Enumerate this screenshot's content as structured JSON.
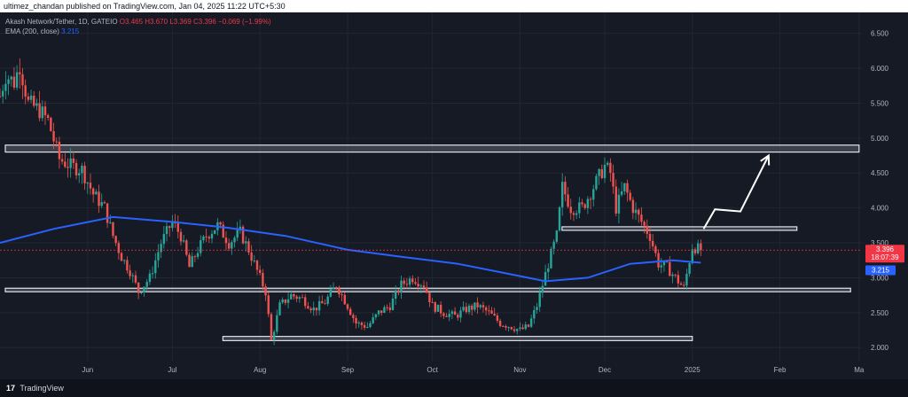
{
  "header": {
    "published_text": "ultimez_chandan published on TradingView.com, Jan 04, 2025 11:22 UTC+5:30"
  },
  "legend": {
    "symbol": "Akash Network/Tether, 1D, GATEIO",
    "open": "O3.465",
    "high": "H3.670",
    "low": "L3.369",
    "close": "C3.396",
    "change": "−0.069 (−1.99%)",
    "ema_label": "EMA (200, close)",
    "ema_value": "3.215"
  },
  "footer": {
    "logo_text": "TradingView",
    "logo_mark": "17"
  },
  "colors": {
    "background": "#161a25",
    "up": "#26a69a",
    "down": "#ef5350",
    "ema": "#2962ff",
    "price_badge": "#f23645",
    "ema_badge": "#2962ff"
  },
  "chart_data": {
    "type": "candlestick",
    "symbol": "Akash Network/Tether",
    "interval": "1D",
    "exchange": "GATEIO",
    "y_axis": {
      "ticks": [
        "6.500",
        "6.000",
        "5.500",
        "5.000",
        "4.500",
        "4.000",
        "3.500",
        "3.000",
        "2.500",
        "2.000"
      ],
      "range": [
        1.8,
        6.8
      ]
    },
    "x_axis": {
      "ticks": [
        "Jun",
        "Jul",
        "Aug",
        "Sep",
        "Oct",
        "Nov",
        "Dec",
        "2025",
        "Feb",
        "Ma"
      ]
    },
    "last_price_label": "3.396",
    "countdown_label": "18:07:39",
    "ema_price_label": "3.215",
    "price_path": [
      [
        "2024-05-01",
        5.6
      ],
      [
        "2024-05-03",
        5.9
      ],
      [
        "2024-05-06",
        5.8
      ],
      [
        "2024-05-08",
        6.05
      ],
      [
        "2024-05-11",
        5.5
      ],
      [
        "2024-05-15",
        5.4
      ],
      [
        "2024-05-18",
        5.25
      ],
      [
        "2024-05-22",
        4.7
      ],
      [
        "2024-05-26",
        4.6
      ],
      [
        "2024-05-30",
        4.55
      ],
      [
        "2024-06-03",
        4.2
      ],
      [
        "2024-06-07",
        4.0
      ],
      [
        "2024-06-10",
        3.6
      ],
      [
        "2024-06-13",
        3.3
      ],
      [
        "2024-06-16",
        3.1
      ],
      [
        "2024-06-19",
        2.8
      ],
      [
        "2024-06-23",
        3.0
      ],
      [
        "2024-06-27",
        3.5
      ],
      [
        "2024-07-01",
        3.8
      ],
      [
        "2024-07-04",
        3.6
      ],
      [
        "2024-07-07",
        3.15
      ],
      [
        "2024-07-10",
        3.4
      ],
      [
        "2024-07-13",
        3.6
      ],
      [
        "2024-07-17",
        3.75
      ],
      [
        "2024-07-21",
        3.5
      ],
      [
        "2024-07-25",
        3.65
      ],
      [
        "2024-07-28",
        3.4
      ],
      [
        "2024-07-31",
        3.1
      ],
      [
        "2024-08-03",
        2.8
      ],
      [
        "2024-08-05",
        2.1
      ],
      [
        "2024-08-08",
        2.6
      ],
      [
        "2024-08-12",
        2.75
      ],
      [
        "2024-08-16",
        2.7
      ],
      [
        "2024-08-20",
        2.55
      ],
      [
        "2024-08-24",
        2.65
      ],
      [
        "2024-08-28",
        2.9
      ],
      [
        "2024-09-01",
        2.6
      ],
      [
        "2024-09-04",
        2.35
      ],
      [
        "2024-09-08",
        2.3
      ],
      [
        "2024-09-12",
        2.5
      ],
      [
        "2024-09-16",
        2.6
      ],
      [
        "2024-09-20",
        2.9
      ],
      [
        "2024-09-24",
        3.0
      ],
      [
        "2024-09-28",
        2.9
      ],
      [
        "2024-10-01",
        2.6
      ],
      [
        "2024-10-05",
        2.5
      ],
      [
        "2024-10-09",
        2.45
      ],
      [
        "2024-10-13",
        2.55
      ],
      [
        "2024-10-17",
        2.6
      ],
      [
        "2024-10-21",
        2.5
      ],
      [
        "2024-10-25",
        2.35
      ],
      [
        "2024-10-29",
        2.3
      ],
      [
        "2024-11-01",
        2.25
      ],
      [
        "2024-11-04",
        2.3
      ],
      [
        "2024-11-07",
        2.6
      ],
      [
        "2024-11-11",
        3.2
      ],
      [
        "2024-11-14",
        3.6
      ],
      [
        "2024-11-16",
        4.3
      ],
      [
        "2024-11-19",
        4.0
      ],
      [
        "2024-11-23",
        4.0
      ],
      [
        "2024-11-27",
        4.3
      ],
      [
        "2024-12-01",
        4.6
      ],
      [
        "2024-12-03",
        4.5
      ],
      [
        "2024-12-05",
        4.0
      ],
      [
        "2024-12-08",
        4.3
      ],
      [
        "2024-12-11",
        4.0
      ],
      [
        "2024-12-14",
        3.8
      ],
      [
        "2024-12-17",
        3.6
      ],
      [
        "2024-12-20",
        3.2
      ],
      [
        "2024-12-23",
        3.15
      ],
      [
        "2024-12-26",
        3.0
      ],
      [
        "2024-12-29",
        2.85
      ],
      [
        "2025-01-01",
        3.45
      ],
      [
        "2025-01-04",
        3.396
      ]
    ],
    "ema_path": [
      [
        "2024-05-01",
        3.5
      ],
      [
        "2024-05-20",
        3.7
      ],
      [
        "2024-06-10",
        3.87
      ],
      [
        "2024-07-01",
        3.8
      ],
      [
        "2024-07-20",
        3.72
      ],
      [
        "2024-08-10",
        3.6
      ],
      [
        "2024-09-01",
        3.4
      ],
      [
        "2024-09-20",
        3.3
      ],
      [
        "2024-10-10",
        3.2
      ],
      [
        "2024-10-25",
        3.08
      ],
      [
        "2024-11-10",
        2.95
      ],
      [
        "2024-11-25",
        3.0
      ],
      [
        "2024-12-10",
        3.2
      ],
      [
        "2024-12-25",
        3.25
      ],
      [
        "2025-01-04",
        3.215
      ]
    ],
    "zones": [
      {
        "from": "2024-05-01",
        "to": "2025-03-01",
        "low": 4.8,
        "high": 4.9
      },
      {
        "from": "2024-11-14",
        "to": "2025-02-07",
        "low": 3.68,
        "high": 3.73
      },
      {
        "from": "2024-05-01",
        "to": "2025-02-26",
        "low": 2.8,
        "high": 2.85
      },
      {
        "from": "2024-07-17",
        "to": "2025-01-01",
        "low": 2.1,
        "high": 2.16
      }
    ],
    "projection": [
      [
        "2025-01-05",
        3.7
      ],
      [
        "2025-01-09",
        3.98
      ],
      [
        "2025-01-18",
        3.95
      ],
      [
        "2025-01-28",
        4.75
      ]
    ]
  }
}
